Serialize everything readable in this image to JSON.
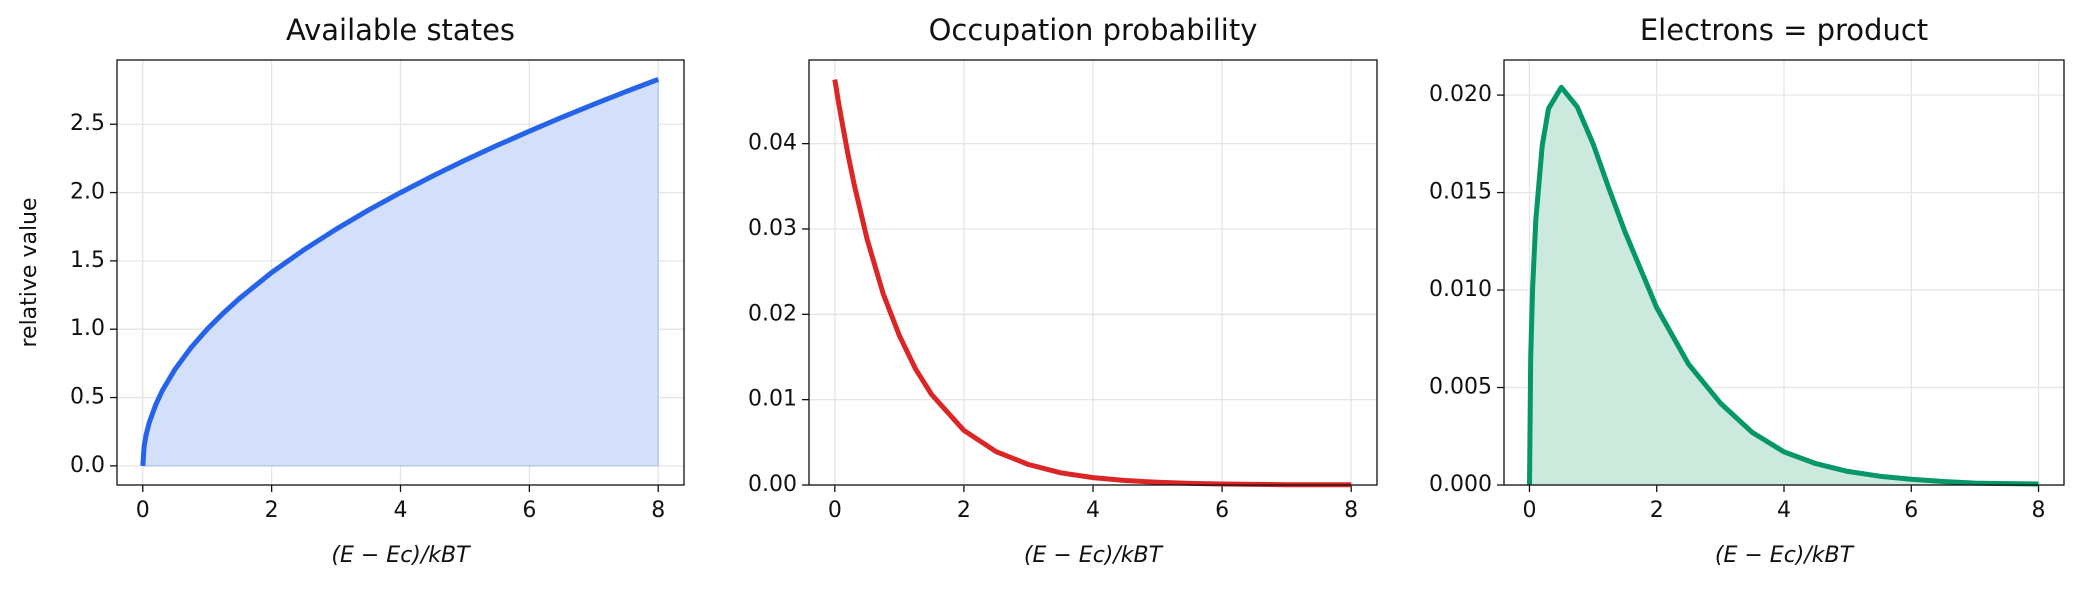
{
  "chart_data": [
    {
      "type": "line",
      "title": "Available states",
      "ylabel": "relative value",
      "xlabel": "(E − Ec)/kBT",
      "x": [
        0,
        0.02,
        0.05,
        0.1,
        0.2,
        0.3,
        0.5,
        0.75,
        1,
        1.25,
        1.5,
        2,
        2.5,
        3,
        3.5,
        4,
        4.5,
        5,
        5.5,
        6,
        6.5,
        7,
        7.5,
        8
      ],
      "values": [
        0,
        0.141,
        0.224,
        0.316,
        0.447,
        0.548,
        0.707,
        0.866,
        1,
        1.118,
        1.225,
        1.414,
        1.581,
        1.732,
        1.871,
        2,
        2.121,
        2.236,
        2.345,
        2.449,
        2.55,
        2.646,
        2.739,
        2.828
      ],
      "color": "#2563eb",
      "fill": true,
      "fill_color": "#d4e0f9",
      "xlim": [
        -0.4,
        8.4
      ],
      "ylim": [
        -0.14,
        2.97
      ],
      "xticks": [
        0,
        2,
        4,
        6,
        8
      ],
      "yticks": [
        {
          "value": 0,
          "label": "0.0"
        },
        {
          "value": 0.5,
          "label": "0.5"
        },
        {
          "value": 1,
          "label": "1.0"
        },
        {
          "value": 1.5,
          "label": "1.5"
        },
        {
          "value": 2,
          "label": "2.0"
        },
        {
          "value": 2.5,
          "label": "2.5"
        }
      ],
      "grid": true
    },
    {
      "type": "line",
      "title": "Occupation probability",
      "xlabel": "(E − Ec)/kBT",
      "x": [
        0,
        0.02,
        0.05,
        0.1,
        0.2,
        0.3,
        0.5,
        0.75,
        1,
        1.25,
        1.5,
        2,
        2.5,
        3,
        3.5,
        4,
        4.5,
        5,
        5.5,
        6,
        6.5,
        7,
        7.5,
        8
      ],
      "values": [
        0.0475,
        0.0466,
        0.0452,
        0.043,
        0.0389,
        0.0352,
        0.0288,
        0.0224,
        0.0175,
        0.0136,
        0.0106,
        0.0064,
        0.0039,
        0.0024,
        0.00143,
        0.00087,
        0.00053,
        0.00032,
        0.00019,
        0.00012,
        7e-05,
        4e-05,
        3e-05,
        2e-05
      ],
      "color": "#dc2626",
      "fill": false,
      "xlim": [
        -0.4,
        8.4
      ],
      "ylim": [
        0,
        0.0498
      ],
      "xticks": [
        0,
        2,
        4,
        6,
        8
      ],
      "yticks": [
        {
          "value": 0,
          "label": "0.00"
        },
        {
          "value": 0.01,
          "label": "0.01"
        },
        {
          "value": 0.02,
          "label": "0.02"
        },
        {
          "value": 0.03,
          "label": "0.03"
        },
        {
          "value": 0.04,
          "label": "0.04"
        }
      ],
      "grid": true
    },
    {
      "type": "line",
      "title": "Electrons = product",
      "xlabel": "(E − Ec)/kBT",
      "x": [
        0,
        0.02,
        0.05,
        0.1,
        0.2,
        0.3,
        0.5,
        0.75,
        1,
        1.25,
        1.5,
        2,
        2.5,
        3,
        3.5,
        4,
        4.5,
        5,
        5.5,
        6,
        6.5,
        7,
        7.5,
        8
      ],
      "values": [
        0,
        0.00657,
        0.0101,
        0.0136,
        0.0174,
        0.0193,
        0.0204,
        0.0194,
        0.0175,
        0.0152,
        0.013,
        0.0091,
        0.0062,
        0.0042,
        0.0027,
        0.0017,
        0.0011,
        0.0007,
        0.00045,
        0.00029,
        0.00018,
        0.0001,
        7e-05,
        5e-05
      ],
      "color": "#059669",
      "fill": true,
      "fill_color": "#cce9de",
      "xlim": [
        -0.4,
        8.4
      ],
      "ylim": [
        0,
        0.0218
      ],
      "xticks": [
        0,
        2,
        4,
        6,
        8
      ],
      "yticks": [
        {
          "value": 0,
          "label": "0.000"
        },
        {
          "value": 0.005,
          "label": "0.005"
        },
        {
          "value": 0.01,
          "label": "0.010"
        },
        {
          "value": 0.015,
          "label": "0.015"
        },
        {
          "value": 0.02,
          "label": "0.020"
        }
      ],
      "grid": true
    }
  ]
}
